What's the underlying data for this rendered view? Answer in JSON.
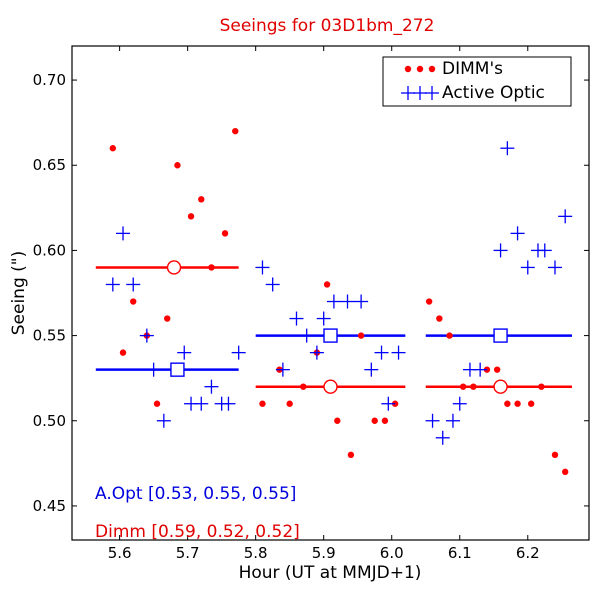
{
  "chart_data": {
    "type": "scatter",
    "title": "Seeings for 03D1bm_272",
    "xlabel": "Hour (UT at MMJD+1)",
    "ylabel": "Seeing (\")",
    "xlim": [
      5.53,
      6.29
    ],
    "ylim": [
      0.43,
      0.72
    ],
    "xticks": [
      5.6,
      5.7,
      5.8,
      5.9,
      6.0,
      6.1,
      6.2
    ],
    "xtick_labels": [
      "5.6",
      "5.7",
      "5.8",
      "5.9",
      "6.0",
      "6.1",
      "6.2"
    ],
    "yticks": [
      0.45,
      0.5,
      0.55,
      0.6,
      0.65,
      0.7
    ],
    "ytick_labels": [
      "0.45",
      "0.50",
      "0.55",
      "0.60",
      "0.65",
      "0.70"
    ],
    "legend_position": "top-right",
    "series": [
      {
        "name": "DIMM's",
        "color": "#ff0000",
        "marker": "dot",
        "points": [
          [
            5.59,
            0.66
          ],
          [
            5.605,
            0.54
          ],
          [
            5.62,
            0.57
          ],
          [
            5.64,
            0.55
          ],
          [
            5.655,
            0.51
          ],
          [
            5.67,
            0.56
          ],
          [
            5.685,
            0.65
          ],
          [
            5.705,
            0.62
          ],
          [
            5.72,
            0.63
          ],
          [
            5.735,
            0.59
          ],
          [
            5.755,
            0.61
          ],
          [
            5.77,
            0.67
          ],
          [
            5.81,
            0.51
          ],
          [
            5.835,
            0.53
          ],
          [
            5.85,
            0.51
          ],
          [
            5.87,
            0.52
          ],
          [
            5.89,
            0.54
          ],
          [
            5.905,
            0.58
          ],
          [
            5.92,
            0.5
          ],
          [
            5.94,
            0.48
          ],
          [
            5.955,
            0.55
          ],
          [
            5.975,
            0.5
          ],
          [
            5.99,
            0.5
          ],
          [
            6.005,
            0.51
          ],
          [
            6.055,
            0.57
          ],
          [
            6.07,
            0.56
          ],
          [
            6.085,
            0.55
          ],
          [
            6.105,
            0.52
          ],
          [
            6.12,
            0.52
          ],
          [
            6.14,
            0.53
          ],
          [
            6.155,
            0.53
          ],
          [
            6.17,
            0.51
          ],
          [
            6.185,
            0.51
          ],
          [
            6.205,
            0.51
          ],
          [
            6.22,
            0.52
          ],
          [
            6.24,
            0.48
          ],
          [
            6.255,
            0.47
          ]
        ]
      },
      {
        "name": "Active Optic",
        "color": "#0000ff",
        "marker": "plus",
        "points": [
          [
            5.59,
            0.58
          ],
          [
            5.605,
            0.61
          ],
          [
            5.62,
            0.58
          ],
          [
            5.64,
            0.55
          ],
          [
            5.65,
            0.53
          ],
          [
            5.665,
            0.5
          ],
          [
            5.695,
            0.54
          ],
          [
            5.705,
            0.51
          ],
          [
            5.72,
            0.51
          ],
          [
            5.735,
            0.52
          ],
          [
            5.75,
            0.51
          ],
          [
            5.76,
            0.51
          ],
          [
            5.775,
            0.54
          ],
          [
            5.81,
            0.59
          ],
          [
            5.825,
            0.58
          ],
          [
            5.84,
            0.53
          ],
          [
            5.86,
            0.56
          ],
          [
            5.875,
            0.55
          ],
          [
            5.89,
            0.54
          ],
          [
            5.9,
            0.56
          ],
          [
            5.915,
            0.57
          ],
          [
            5.935,
            0.57
          ],
          [
            5.955,
            0.57
          ],
          [
            5.97,
            0.53
          ],
          [
            5.985,
            0.54
          ],
          [
            5.995,
            0.51
          ],
          [
            6.01,
            0.54
          ],
          [
            6.06,
            0.5
          ],
          [
            6.075,
            0.49
          ],
          [
            6.09,
            0.5
          ],
          [
            6.1,
            0.51
          ],
          [
            6.115,
            0.53
          ],
          [
            6.13,
            0.53
          ],
          [
            6.16,
            0.6
          ],
          [
            6.17,
            0.66
          ],
          [
            6.185,
            0.61
          ],
          [
            6.2,
            0.59
          ],
          [
            6.215,
            0.6
          ],
          [
            6.225,
            0.6
          ],
          [
            6.24,
            0.59
          ],
          [
            6.255,
            0.62
          ]
        ]
      }
    ],
    "segments": [
      {
        "series": "DIMM's",
        "x0": 5.565,
        "x1": 5.775,
        "y": 0.59,
        "marker_x": 5.68,
        "marker": "circle"
      },
      {
        "series": "DIMM's",
        "x0": 5.8,
        "x1": 6.02,
        "y": 0.52,
        "marker_x": 5.91,
        "marker": "circle"
      },
      {
        "series": "DIMM's",
        "x0": 6.05,
        "x1": 6.265,
        "y": 0.52,
        "marker_x": 6.16,
        "marker": "circle"
      },
      {
        "series": "Active Optic",
        "x0": 5.565,
        "x1": 5.775,
        "y": 0.53,
        "marker_x": 5.685,
        "marker": "square"
      },
      {
        "series": "Active Optic",
        "x0": 5.8,
        "x1": 6.02,
        "y": 0.55,
        "marker_x": 5.91,
        "marker": "square"
      },
      {
        "series": "Active Optic",
        "x0": 6.05,
        "x1": 6.265,
        "y": 0.55,
        "marker_x": 6.16,
        "marker": "square"
      }
    ],
    "annotations": {
      "aopt": "A.Opt [0.53, 0.55, 0.55]",
      "dimm": "Dimm [0.59, 0.52, 0.52]"
    }
  }
}
